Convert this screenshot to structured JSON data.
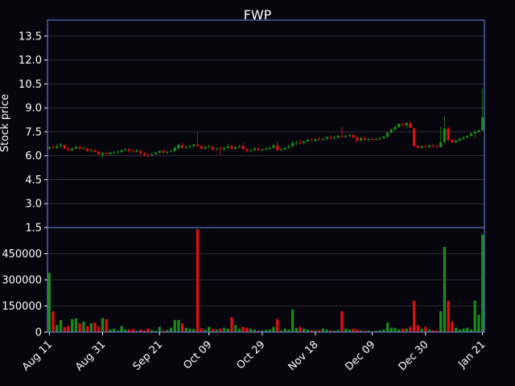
{
  "chart_data": {
    "type": "candlestick",
    "title": "FWP",
    "ylabel": "Stock price",
    "xlabel": "",
    "grid": true,
    "colors": {
      "background": "#07050e",
      "frame": "#6f8fe8",
      "grid": "#3a3a44",
      "up": "#1a8a1a",
      "down": "#e01010",
      "text": "#ffffff"
    },
    "price_axis": {
      "ylim": [
        1.5,
        14.5
      ],
      "ticks": [
        "1.5",
        "3.0",
        "4.5",
        "6.0",
        "7.5",
        "9.0",
        "10.5",
        "12.0",
        "13.5"
      ]
    },
    "volume_axis": {
      "ylim": [
        0,
        600000
      ],
      "ticks": [
        "0",
        "150000",
        "300000",
        "450000"
      ]
    },
    "x_ticks": [
      {
        "label": "Aug 11",
        "index": 0
      },
      {
        "label": "Aug 31",
        "index": 14
      },
      {
        "label": "Sep 21",
        "index": 29
      },
      {
        "label": "Oct 09",
        "index": 42
      },
      {
        "label": "Oct 29",
        "index": 56
      },
      {
        "label": "Nov 18",
        "index": 70
      },
      {
        "label": "Dec 09",
        "index": 85
      },
      {
        "label": "Dec 30",
        "index": 99
      },
      {
        "label": "Jan 21",
        "index": 114
      }
    ],
    "ohlcv": [
      [
        6.45,
        6.6,
        6.35,
        6.55,
        340000
      ],
      [
        6.55,
        6.7,
        6.45,
        6.5,
        120000
      ],
      [
        6.5,
        6.75,
        6.4,
        6.6,
        40000
      ],
      [
        6.6,
        6.8,
        6.5,
        6.7,
        70000
      ],
      [
        6.65,
        6.75,
        6.4,
        6.45,
        30000
      ],
      [
        6.45,
        6.55,
        6.3,
        6.35,
        35000
      ],
      [
        6.35,
        6.5,
        6.25,
        6.45,
        75000
      ],
      [
        6.45,
        6.65,
        6.4,
        6.55,
        80000
      ],
      [
        6.55,
        6.6,
        6.4,
        6.45,
        50000
      ],
      [
        6.45,
        6.55,
        6.35,
        6.5,
        60000
      ],
      [
        6.45,
        6.5,
        6.25,
        6.3,
        35000
      ],
      [
        6.3,
        6.45,
        6.2,
        6.35,
        50000
      ],
      [
        6.35,
        6.45,
        6.2,
        6.25,
        55000
      ],
      [
        6.25,
        6.3,
        6.05,
        6.1,
        30000
      ],
      [
        6.05,
        6.25,
        5.85,
        6.15,
        80000
      ],
      [
        6.15,
        6.25,
        6.0,
        6.1,
        75000
      ],
      [
        6.1,
        6.25,
        6.05,
        6.2,
        15000
      ],
      [
        6.15,
        6.3,
        6.05,
        6.2,
        20000
      ],
      [
        6.2,
        6.35,
        6.1,
        6.25,
        8000
      ],
      [
        6.25,
        6.4,
        6.15,
        6.35,
        35000
      ],
      [
        6.35,
        6.5,
        6.25,
        6.4,
        15000
      ],
      [
        6.4,
        6.5,
        6.2,
        6.3,
        15000
      ],
      [
        6.3,
        6.4,
        6.15,
        6.25,
        18000
      ],
      [
        6.25,
        6.4,
        6.2,
        6.35,
        8000
      ],
      [
        6.3,
        6.4,
        6.05,
        6.15,
        15000
      ],
      [
        6.15,
        6.25,
        5.95,
        6.05,
        10000
      ],
      [
        6.05,
        6.15,
        5.9,
        6.0,
        20000
      ],
      [
        6.05,
        6.2,
        6.0,
        6.1,
        12000
      ],
      [
        6.1,
        6.25,
        6.05,
        6.2,
        8000
      ],
      [
        6.2,
        6.35,
        6.1,
        6.3,
        30000
      ],
      [
        6.3,
        6.4,
        6.15,
        6.2,
        8000
      ],
      [
        6.2,
        6.3,
        6.1,
        6.25,
        12000
      ],
      [
        6.25,
        6.4,
        6.2,
        6.3,
        25000
      ],
      [
        6.3,
        6.6,
        6.25,
        6.5,
        70000
      ],
      [
        6.45,
        6.75,
        6.4,
        6.7,
        70000
      ],
      [
        6.65,
        6.8,
        6.45,
        6.5,
        50000
      ],
      [
        6.5,
        6.65,
        6.4,
        6.55,
        25000
      ],
      [
        6.55,
        6.7,
        6.45,
        6.6,
        20000
      ],
      [
        6.6,
        6.75,
        6.5,
        6.7,
        18000
      ],
      [
        6.7,
        7.45,
        6.55,
        6.6,
        590000
      ],
      [
        6.6,
        6.7,
        6.4,
        6.45,
        20000
      ],
      [
        6.45,
        6.6,
        6.4,
        6.55,
        15000
      ],
      [
        6.55,
        6.7,
        6.45,
        6.6,
        30000
      ],
      [
        6.55,
        6.65,
        6.3,
        6.4,
        18000
      ],
      [
        6.4,
        6.55,
        6.3,
        6.45,
        15000
      ],
      [
        6.45,
        6.6,
        6.05,
        6.4,
        20000
      ],
      [
        6.4,
        6.55,
        6.3,
        6.5,
        25000
      ],
      [
        6.5,
        6.75,
        6.4,
        6.6,
        20000
      ],
      [
        6.6,
        6.7,
        6.4,
        6.45,
        85000
      ],
      [
        6.45,
        6.6,
        6.35,
        6.55,
        40000
      ],
      [
        6.55,
        6.7,
        6.45,
        6.6,
        20000
      ],
      [
        6.6,
        6.8,
        6.4,
        6.4,
        30000
      ],
      [
        6.4,
        6.5,
        6.2,
        6.3,
        25000
      ],
      [
        6.3,
        6.45,
        6.2,
        6.35,
        20000
      ],
      [
        6.35,
        6.55,
        6.3,
        6.45,
        15000
      ],
      [
        6.45,
        6.55,
        6.3,
        6.35,
        10000
      ],
      [
        6.35,
        6.45,
        6.25,
        6.4,
        10000
      ],
      [
        6.4,
        6.55,
        6.3,
        6.45,
        12000
      ],
      [
        6.45,
        6.6,
        6.35,
        6.5,
        15000
      ],
      [
        6.5,
        6.75,
        6.4,
        6.65,
        30000
      ],
      [
        6.65,
        6.9,
        6.3,
        6.35,
        75000
      ],
      [
        6.35,
        6.5,
        6.3,
        6.4,
        10000
      ],
      [
        6.4,
        6.55,
        6.35,
        6.5,
        20000
      ],
      [
        6.5,
        6.7,
        6.45,
        6.6,
        15000
      ],
      [
        6.6,
        6.9,
        6.55,
        6.8,
        130000
      ],
      [
        6.8,
        6.95,
        6.65,
        6.85,
        25000
      ],
      [
        6.85,
        7.0,
        6.7,
        6.8,
        30000
      ],
      [
        6.8,
        6.95,
        6.7,
        6.9,
        20000
      ],
      [
        6.9,
        7.1,
        6.85,
        7.0,
        15000
      ],
      [
        7.0,
        7.15,
        6.9,
        6.95,
        12000
      ],
      [
        6.95,
        7.1,
        6.85,
        7.05,
        10000
      ],
      [
        7.05,
        7.2,
        6.95,
        7.0,
        12000
      ],
      [
        7.0,
        7.15,
        6.9,
        7.05,
        20000
      ],
      [
        7.05,
        7.25,
        7.0,
        7.15,
        15000
      ],
      [
        7.15,
        7.3,
        7.05,
        7.1,
        10000
      ],
      [
        7.1,
        7.25,
        7.0,
        7.15,
        8000
      ],
      [
        7.15,
        7.3,
        7.05,
        7.25,
        12000
      ],
      [
        7.25,
        7.8,
        7.1,
        7.2,
        120000
      ],
      [
        7.2,
        7.35,
        7.1,
        7.25,
        20000
      ],
      [
        7.25,
        7.4,
        7.15,
        7.3,
        15000
      ],
      [
        7.3,
        7.4,
        7.1,
        7.15,
        20000
      ],
      [
        7.15,
        7.25,
        6.8,
        6.95,
        15000
      ],
      [
        6.95,
        7.2,
        6.9,
        7.1,
        10000
      ],
      [
        7.1,
        7.25,
        6.95,
        7.0,
        8000
      ],
      [
        7.0,
        7.15,
        6.9,
        7.05,
        10000
      ],
      [
        7.05,
        7.15,
        6.95,
        7.0,
        5000
      ],
      [
        7.0,
        7.1,
        6.95,
        7.05,
        8000
      ],
      [
        7.05,
        7.2,
        7.0,
        7.1,
        10000
      ],
      [
        7.1,
        7.25,
        7.05,
        7.2,
        15000
      ],
      [
        7.2,
        7.5,
        7.05,
        7.45,
        55000
      ],
      [
        7.45,
        7.7,
        7.4,
        7.65,
        25000
      ],
      [
        7.65,
        7.9,
        7.6,
        7.8,
        25000
      ],
      [
        7.8,
        8.05,
        7.75,
        8.0,
        15000
      ],
      [
        7.95,
        8.1,
        7.85,
        7.9,
        20000
      ],
      [
        7.9,
        8.1,
        7.7,
        8.05,
        20000
      ],
      [
        8.05,
        8.15,
        7.7,
        7.75,
        30000
      ],
      [
        7.7,
        7.75,
        6.55,
        6.6,
        180000
      ],
      [
        6.6,
        6.7,
        6.45,
        6.5,
        40000
      ],
      [
        6.5,
        6.65,
        6.45,
        6.6,
        20000
      ],
      [
        6.6,
        6.75,
        6.5,
        6.55,
        30000
      ],
      [
        6.55,
        6.7,
        6.45,
        6.65,
        15000
      ],
      [
        6.65,
        6.75,
        6.5,
        6.6,
        10000
      ],
      [
        6.6,
        6.7,
        6.5,
        6.55,
        8000
      ],
      [
        6.55,
        7.8,
        6.5,
        6.85,
        120000
      ],
      [
        6.85,
        8.5,
        6.8,
        7.7,
        490000
      ],
      [
        7.7,
        7.85,
        6.9,
        7.0,
        180000
      ],
      [
        7.0,
        7.1,
        6.8,
        6.85,
        60000
      ],
      [
        6.85,
        7.0,
        6.8,
        6.95,
        25000
      ],
      [
        6.95,
        7.15,
        6.9,
        7.05,
        15000
      ],
      [
        7.05,
        7.2,
        7.0,
        7.15,
        20000
      ],
      [
        7.15,
        7.3,
        7.1,
        7.25,
        25000
      ],
      [
        7.25,
        7.45,
        7.2,
        7.4,
        15000
      ],
      [
        7.4,
        7.6,
        7.1,
        7.5,
        180000
      ],
      [
        7.5,
        7.65,
        7.45,
        7.6,
        100000
      ],
      [
        7.6,
        10.2,
        7.55,
        8.4,
        560000
      ]
    ]
  }
}
